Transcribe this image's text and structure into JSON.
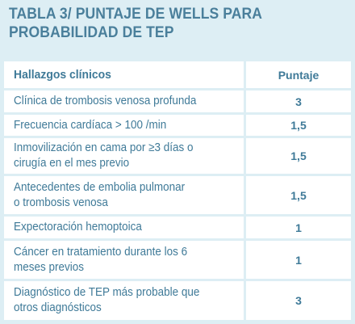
{
  "title": {
    "line1": "TABLA 3/ PUNTAJE DE WELLS PARA",
    "line2": "PROBABILIDAD DE TEP"
  },
  "table": {
    "headers": {
      "findings": "Hallazgos clínicos",
      "score": "Puntaje"
    },
    "rows": [
      {
        "finding": [
          "Clínica de trombosis venosa profunda"
        ],
        "score": "3"
      },
      {
        "finding": [
          "Frecuencia cardíaca > 100 /min"
        ],
        "score": "1,5"
      },
      {
        "finding": [
          "Inmovilización en cama por ≥3 días o",
          "cirugía en el mes previo"
        ],
        "score": "1,5"
      },
      {
        "finding": [
          "Antecedentes de embolia pulmonar",
          "o trombosis venosa"
        ],
        "score": "1,5"
      },
      {
        "finding": [
          "Expectoración hemoptoica"
        ],
        "score": "1"
      },
      {
        "finding": [
          "Cáncer en tratamiento durante los 6",
          "meses previos"
        ],
        "score": "1"
      },
      {
        "finding": [
          "Diagnóstico de TEP más probable que",
          "otros diagnósticos"
        ],
        "score": "3"
      }
    ]
  }
}
